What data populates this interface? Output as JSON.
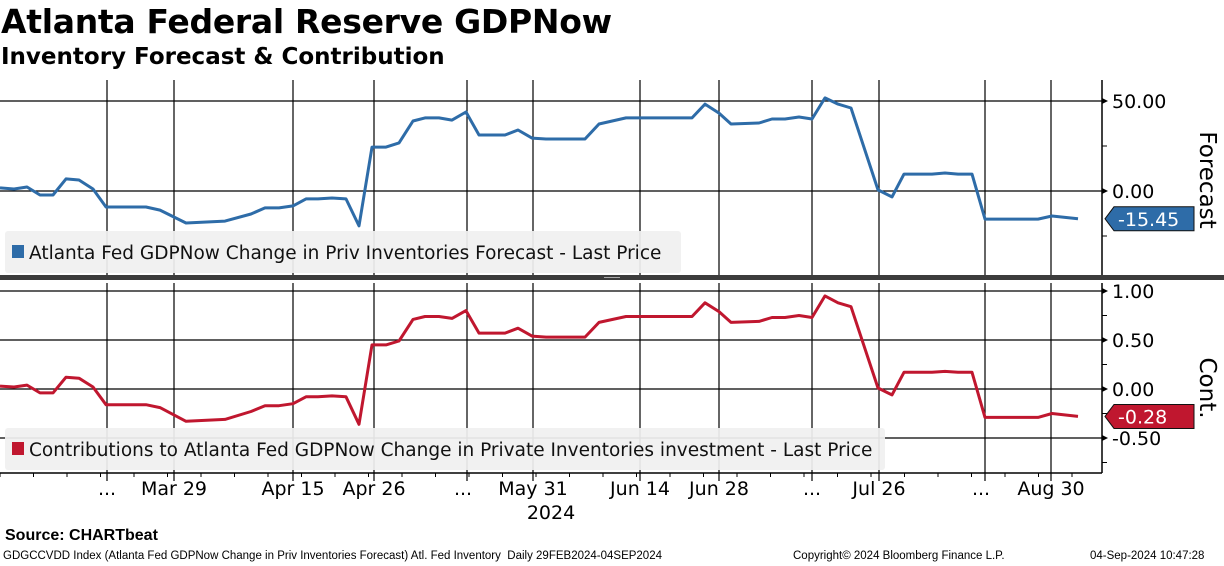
{
  "header": {
    "title": "Atlanta Federal Reserve GDPNow",
    "subtitle": "Inventory Forecast & Contribution"
  },
  "colors": {
    "forecast": "#2e6ca8",
    "contribution": "#c0172f",
    "legend_bg": "#f0f0f0"
  },
  "chart_data": [
    {
      "type": "line",
      "panel": "top",
      "ylabel": "Forecast",
      "yticks": [
        50,
        0
      ],
      "yticks_labels": [
        "50.00",
        "0.00"
      ],
      "ylim": [
        -47,
        60
      ],
      "legend": "Atlanta Fed GDPNow Change in Priv Inventories Forecast - Last Price",
      "last_value_label": "-15.45",
      "last_value": -15.45,
      "x": [
        0,
        1.4,
        2.7,
        4.0,
        5.3,
        6.6,
        7.9,
        9.3,
        10.6,
        14.6,
        16.0,
        18.6,
        22.5,
        25.1,
        26.5,
        27.9,
        29.3,
        30.6,
        31.8,
        33.2,
        34.6,
        35.9,
        37.2,
        38.6,
        39.9,
        41.3,
        42.5,
        43.9,
        45.2,
        46.6,
        47.9,
        50.5,
        51.8,
        53.2,
        54.6,
        58.5,
        59.9,
        62.6,
        69.2,
        70.5,
        71.9,
        73.1,
        75.9,
        77.2,
        78.5,
        79.9,
        81.2,
        82.5,
        83.8,
        85.1,
        87.8,
        89.2,
        90.4,
        93.2,
        94.5,
        95.8,
        97.2,
        98.5,
        103.8,
        105.2,
        107.8
      ],
      "values": [
        1.7,
        1.1,
        2.2,
        -2.2,
        -2.2,
        6.7,
        6.1,
        1.1,
        -8.9,
        -8.9,
        -10.6,
        -17.8,
        -16.7,
        -12.8,
        -9.4,
        -9.4,
        -8.3,
        -4.4,
        -4.4,
        -3.9,
        -4.4,
        -19.4,
        24.4,
        24.4,
        26.7,
        38.9,
        40.6,
        40.6,
        39.4,
        43.9,
        31.1,
        31.1,
        33.9,
        29.4,
        28.9,
        28.9,
        37.2,
        40.6,
        40.6,
        48.3,
        43.3,
        37.2,
        37.8,
        40.0,
        40.0,
        41.1,
        40.0,
        51.7,
        48.3,
        46.1,
        0.6,
        -3.3,
        9.4,
        9.4,
        10.0,
        9.4,
        9.4,
        -15.6,
        -15.6,
        -13.9,
        -15.45
      ]
    },
    {
      "type": "line",
      "panel": "bottom",
      "ylabel": "Cont.",
      "yticks": [
        1.0,
        0.5,
        0,
        -0.5
      ],
      "yticks_labels": [
        "1.00",
        "0.50",
        "0.00",
        "-0.50"
      ],
      "ylim": [
        -0.85,
        1.08
      ],
      "legend": "Contributions to Atlanta Fed GDPNow Change in Private Inventories investment - Last Price",
      "last_value_label": "-0.28",
      "last_value": -0.28,
      "x": [
        0,
        1.4,
        2.7,
        4.0,
        5.3,
        6.6,
        7.9,
        9.3,
        10.6,
        14.6,
        16.0,
        18.6,
        22.5,
        25.1,
        26.5,
        27.9,
        29.3,
        30.6,
        31.8,
        33.2,
        34.6,
        35.9,
        37.2,
        38.6,
        39.9,
        41.3,
        42.5,
        43.9,
        45.2,
        46.6,
        47.9,
        50.5,
        51.8,
        53.2,
        54.6,
        58.5,
        59.9,
        62.6,
        69.2,
        70.5,
        71.9,
        73.1,
        75.9,
        77.2,
        78.5,
        79.9,
        81.2,
        82.5,
        83.8,
        85.1,
        87.8,
        89.2,
        90.4,
        93.2,
        94.5,
        95.8,
        97.2,
        98.5,
        103.8,
        105.2,
        107.8
      ],
      "values": [
        0.03,
        0.02,
        0.04,
        -0.04,
        -0.04,
        0.12,
        0.11,
        0.02,
        -0.16,
        -0.16,
        -0.19,
        -0.33,
        -0.31,
        -0.23,
        -0.17,
        -0.17,
        -0.15,
        -0.08,
        -0.08,
        -0.07,
        -0.08,
        -0.36,
        0.45,
        0.45,
        0.49,
        0.71,
        0.74,
        0.74,
        0.72,
        0.8,
        0.57,
        0.57,
        0.62,
        0.54,
        0.53,
        0.53,
        0.68,
        0.74,
        0.74,
        0.88,
        0.79,
        0.68,
        0.69,
        0.73,
        0.73,
        0.75,
        0.73,
        0.95,
        0.88,
        0.84,
        0.01,
        -0.06,
        0.17,
        0.17,
        0.18,
        0.17,
        0.17,
        -0.29,
        -0.29,
        -0.25,
        -0.28
      ]
    }
  ],
  "x_axis": {
    "xlim": [
      0,
      110.2
    ],
    "gridlines": [
      10.7,
      17.4,
      29.3,
      37.4,
      46.7,
      53.3,
      64.0,
      71.9,
      81.2,
      87.9,
      98.5,
      105.1
    ],
    "tick_labels": [
      {
        "x": 10.7,
        "label": "..."
      },
      {
        "x": 17.4,
        "label": "Mar 29"
      },
      {
        "x": 29.3,
        "label": "Apr 15"
      },
      {
        "x": 37.4,
        "label": "Apr 26"
      },
      {
        "x": 46.3,
        "label": "..."
      },
      {
        "x": 53.3,
        "label": "May 31"
      },
      {
        "x": 64.0,
        "label": "Jun 14"
      },
      {
        "x": 71.9,
        "label": "Jun 28"
      },
      {
        "x": 81.2,
        "label": "..."
      },
      {
        "x": 87.9,
        "label": "Jul 26"
      },
      {
        "x": 98.1,
        "label": "..."
      },
      {
        "x": 105.1,
        "label": "Aug 30"
      }
    ],
    "year_label": "2024"
  },
  "footer": {
    "source": "Source: CHARTbeat",
    "description": "GDGCCVDD Index (Atlanta Fed GDPNow Change in Priv Inventories Forecast) Atl. Fed Inventory  Daily 29FEB2024-04SEP2024",
    "copyright": "Copyright© 2024 Bloomberg Finance L.P.",
    "timestamp": "04-Sep-2024 10:47:28"
  }
}
